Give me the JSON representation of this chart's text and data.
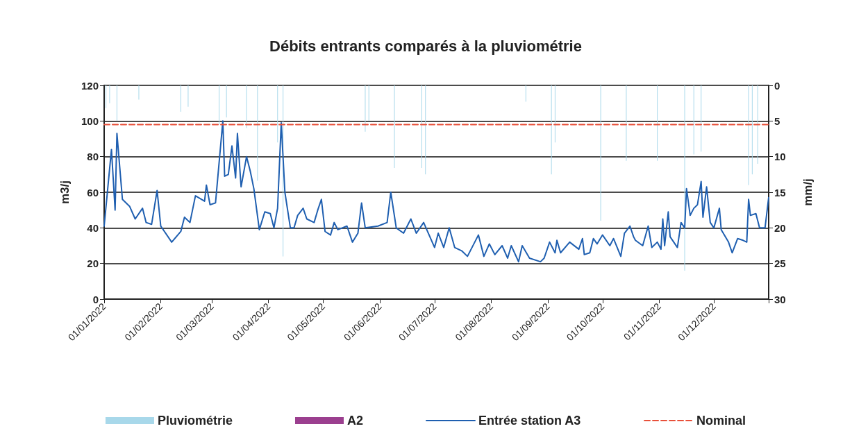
{
  "chart_data": {
    "type": "line",
    "title": "Débits entrants comparés à la pluviométrie",
    "ylabel": "m3/j",
    "y2label": "mm/j",
    "xlim": [
      "2022-01-01",
      "2022-12-31"
    ],
    "xticks": [
      {
        "value": "2022-01-01",
        "label": "01/01/2022"
      },
      {
        "value": "2022-02-01",
        "label": "01/02/2022"
      },
      {
        "value": "2022-03-01",
        "label": "01/03/2022"
      },
      {
        "value": "2022-04-01",
        "label": "01/04/2022"
      },
      {
        "value": "2022-05-01",
        "label": "01/05/2022"
      },
      {
        "value": "2022-06-01",
        "label": "01/06/2022"
      },
      {
        "value": "2022-07-01",
        "label": "01/07/2022"
      },
      {
        "value": "2022-08-01",
        "label": "01/08/2022"
      },
      {
        "value": "2022-09-01",
        "label": "01/09/2022"
      },
      {
        "value": "2022-10-01",
        "label": "01/10/2022"
      },
      {
        "value": "2022-11-01",
        "label": "01/11/2022"
      },
      {
        "value": "2022-12-01",
        "label": "01/12/2022"
      },
      {
        "value": "2022-12-31",
        "label": null
      }
    ],
    "ylim": [
      0,
      120
    ],
    "yticks": [
      0,
      20,
      40,
      60,
      80,
      100,
      120
    ],
    "y2lim": [
      30,
      0
    ],
    "y2ticks": [
      0,
      5,
      10,
      15,
      20,
      25,
      30
    ],
    "grid": "y",
    "legend": "bottom",
    "series": [
      {
        "name": "Pluviométrie",
        "type": "bar",
        "axis": "y2",
        "color": "#a8d8ea",
        "x": [
          "2022-01-02",
          "2022-01-04",
          "2022-01-08",
          "2022-01-20",
          "2022-02-12",
          "2022-02-16",
          "2022-03-05",
          "2022-03-09",
          "2022-03-20",
          "2022-03-26",
          "2022-04-06",
          "2022-04-09",
          "2022-05-24",
          "2022-05-26",
          "2022-06-09",
          "2022-06-24",
          "2022-06-26",
          "2022-08-20",
          "2022-09-03",
          "2022-09-05",
          "2022-09-30",
          "2022-10-14",
          "2022-10-31",
          "2022-11-15",
          "2022-11-20",
          "2022-11-24",
          "2022-12-20",
          "2022-12-22",
          "2022-12-25"
        ],
        "values": [
          3.2,
          2.5,
          5,
          2,
          3.7,
          3,
          5.5,
          4.5,
          6,
          13.4,
          8,
          24,
          6.5,
          5,
          11.6,
          11.6,
          12.5,
          2.3,
          12.5,
          8,
          19,
          10.6,
          10.6,
          26,
          9.7,
          9.3,
          14,
          12.5,
          11
        ]
      },
      {
        "name": "A2",
        "type": "bar",
        "axis": "y2",
        "color": "#9b3f8f"
      },
      {
        "name": "Entrée station A3",
        "color": "#1f5fb0",
        "x": [
          "2022-01-01",
          "2022-01-05",
          "2022-01-07",
          "2022-01-08",
          "2022-01-11",
          "2022-01-15",
          "2022-01-18",
          "2022-01-22",
          "2022-01-24",
          "2022-01-27",
          "2022-01-30",
          "2022-02-01",
          "2022-02-07",
          "2022-02-12",
          "2022-02-14",
          "2022-02-17",
          "2022-02-20",
          "2022-02-25",
          "2022-02-26",
          "2022-02-28",
          "2022-03-03",
          "2022-03-07",
          "2022-03-08",
          "2022-03-10",
          "2022-03-12",
          "2022-03-14",
          "2022-03-15",
          "2022-03-17",
          "2022-03-20",
          "2022-03-22",
          "2022-03-24",
          "2022-03-27",
          "2022-03-30",
          "2022-04-02",
          "2022-04-04",
          "2022-04-06",
          "2022-04-08",
          "2022-04-10",
          "2022-04-13",
          "2022-04-15",
          "2022-04-17",
          "2022-04-20",
          "2022-04-22",
          "2022-04-26",
          "2022-04-28",
          "2022-04-30",
          "2022-05-02",
          "2022-05-05",
          "2022-05-07",
          "2022-05-09",
          "2022-05-14",
          "2022-05-17",
          "2022-05-20",
          "2022-05-22",
          "2022-05-24",
          "2022-05-31",
          "2022-06-05",
          "2022-06-07",
          "2022-06-10",
          "2022-06-14",
          "2022-06-18",
          "2022-06-21",
          "2022-06-25",
          "2022-06-28",
          "2022-07-01",
          "2022-07-03",
          "2022-07-06",
          "2022-07-09",
          "2022-07-12",
          "2022-07-16",
          "2022-07-19",
          "2022-07-25",
          "2022-07-28",
          "2022-07-31",
          "2022-08-03",
          "2022-08-07",
          "2022-08-10",
          "2022-08-12",
          "2022-08-16",
          "2022-08-18",
          "2022-08-22",
          "2022-08-28",
          "2022-08-30",
          "2022-09-02",
          "2022-09-05",
          "2022-09-06",
          "2022-09-08",
          "2022-09-13",
          "2022-09-18",
          "2022-09-20",
          "2022-09-21",
          "2022-09-24",
          "2022-09-26",
          "2022-09-28",
          "2022-10-01",
          "2022-10-05",
          "2022-10-07",
          "2022-10-11",
          "2022-10-13",
          "2022-10-16",
          "2022-10-18",
          "2022-10-19",
          "2022-10-23",
          "2022-10-26",
          "2022-10-28",
          "2022-10-31",
          "2022-11-02",
          "2022-11-03",
          "2022-11-04",
          "2022-11-06",
          "2022-11-07",
          "2022-11-11",
          "2022-11-13",
          "2022-11-15",
          "2022-11-16",
          "2022-11-18",
          "2022-11-20",
          "2022-11-22",
          "2022-11-24",
          "2022-11-25",
          "2022-11-27",
          "2022-11-29",
          "2022-12-01",
          "2022-12-04",
          "2022-12-05",
          "2022-12-09",
          "2022-12-11",
          "2022-12-14",
          "2022-12-17",
          "2022-12-19",
          "2022-12-20",
          "2022-12-21",
          "2022-12-24",
          "2022-12-26",
          "2022-12-29",
          "2022-12-31"
        ],
        "values": [
          41,
          84,
          50,
          93,
          56,
          52,
          45,
          51,
          43,
          42,
          61,
          41,
          32,
          38,
          46,
          43,
          58,
          55,
          64,
          53,
          54,
          100,
          69,
          70,
          86,
          68,
          93,
          63,
          80,
          72,
          62,
          39,
          49,
          48,
          40,
          51,
          99,
          60,
          40,
          40,
          47,
          51,
          45,
          43,
          50,
          56,
          38,
          36,
          43,
          39,
          41,
          32,
          37,
          54,
          40,
          41,
          43,
          60,
          40,
          37,
          45,
          37,
          43,
          36,
          29,
          37,
          29,
          40,
          29,
          27,
          24,
          36,
          24,
          31,
          25,
          30,
          23,
          30,
          21,
          30,
          23,
          21,
          23,
          32,
          26,
          33,
          26,
          32,
          28,
          34,
          25,
          26,
          34,
          31,
          36,
          30,
          34,
          24,
          37,
          41,
          35,
          33,
          30,
          41,
          29,
          32,
          28,
          45,
          30,
          49,
          35,
          29,
          43,
          40,
          62,
          47,
          51,
          53,
          66,
          46,
          63,
          43,
          40,
          51,
          39,
          32,
          26,
          34,
          33,
          32,
          56,
          47,
          48,
          40,
          40,
          57
        ]
      },
      {
        "name": "Nominal",
        "color": "#e8503a",
        "line_style": "dashed",
        "x": [
          "2022-01-01",
          "2022-12-31"
        ],
        "values": [
          98,
          98
        ]
      }
    ]
  }
}
